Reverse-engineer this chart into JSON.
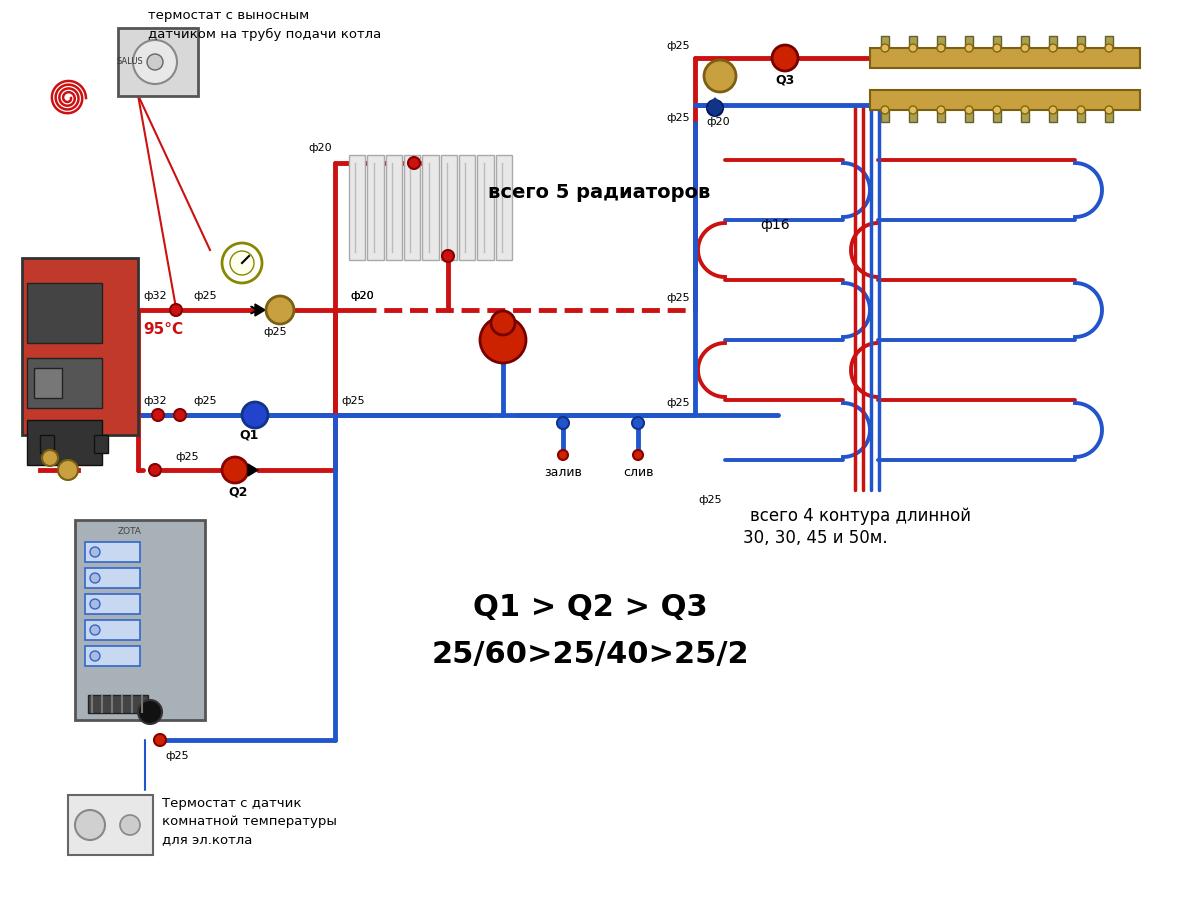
{
  "red": "#cc1111",
  "blue": "#2255cc",
  "gold": "#b8860b",
  "gray_boiler": "#c0392b",
  "gray_elec": "#a8b0b8",
  "white": "#ffffff",
  "black": "#111111",
  "text_top1": "термостат с выносным",
  "text_top2": "датчиком на трубу подачи котла",
  "text_5rad": "всего 5 радиаторов",
  "text_4cont1": "всего 4 контура длинной",
  "text_4cont2": "30, 30, 45 и 50м.",
  "text_q1": "Q1 > Q2 > Q3",
  "text_q2": "25/60>25/40>25/2",
  "text_95": "95°C",
  "text_therm_b1": "Термостат с датчик",
  "text_therm_b2": "комнатной температуры",
  "text_therm_b3": "для эл.котла",
  "text_zaliv": "залив",
  "text_sliv": "слив",
  "lw": 3.5
}
